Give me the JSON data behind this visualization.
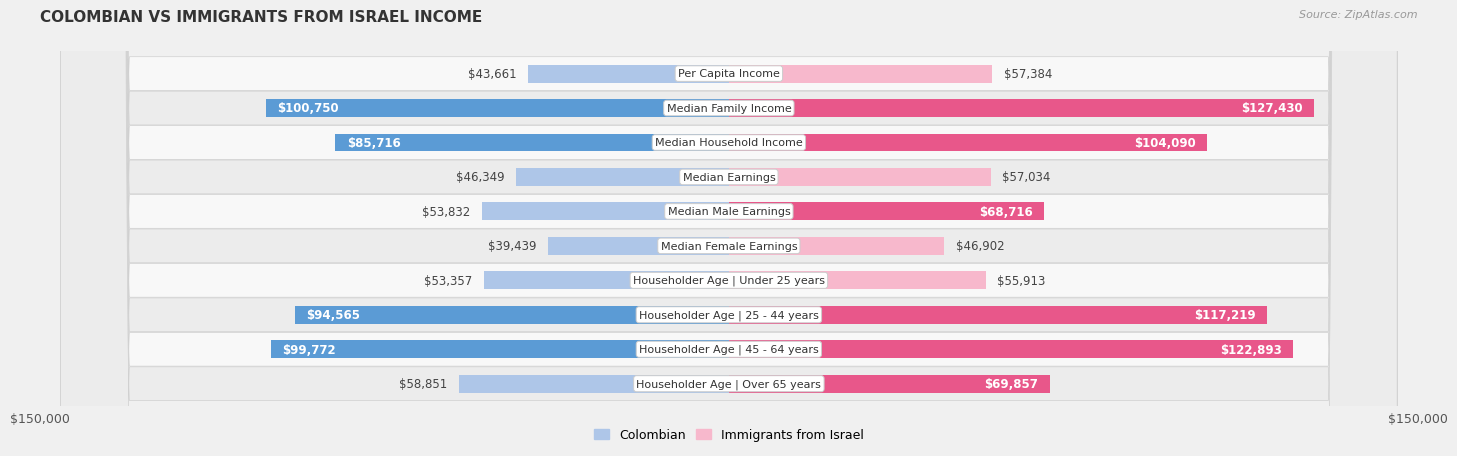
{
  "title": "COLOMBIAN VS IMMIGRANTS FROM ISRAEL INCOME",
  "source": "Source: ZipAtlas.com",
  "categories": [
    "Per Capita Income",
    "Median Family Income",
    "Median Household Income",
    "Median Earnings",
    "Median Male Earnings",
    "Median Female Earnings",
    "Householder Age | Under 25 years",
    "Householder Age | 25 - 44 years",
    "Householder Age | 45 - 64 years",
    "Householder Age | Over 65 years"
  ],
  "colombian_values": [
    43661,
    100750,
    85716,
    46349,
    53832,
    39439,
    53357,
    94565,
    99772,
    58851
  ],
  "israel_values": [
    57384,
    127430,
    104090,
    57034,
    68716,
    46902,
    55913,
    117219,
    122893,
    69857
  ],
  "colombian_labels": [
    "$43,661",
    "$100,750",
    "$85,716",
    "$46,349",
    "$53,832",
    "$39,439",
    "$53,357",
    "$94,565",
    "$99,772",
    "$58,851"
  ],
  "israel_labels": [
    "$57,384",
    "$127,430",
    "$104,090",
    "$57,034",
    "$68,716",
    "$46,902",
    "$55,913",
    "$117,219",
    "$122,893",
    "$69,857"
  ],
  "max_val": 150000,
  "color_colombian_light": "#aec6e8",
  "color_colombian_dark": "#5b9bd5",
  "color_israel_light": "#f7b8cc",
  "color_israel_dark": "#e8578a",
  "bg_color": "#f0f0f0",
  "row_bg": "#f5f5f5",
  "label_fontsize": 8.5,
  "cat_fontsize": 8.0,
  "inside_threshold_col": 60000,
  "inside_threshold_isr": 60000,
  "legend_label_colombian": "Colombian",
  "legend_label_israel": "Immigrants from Israel",
  "x_tick_label": "$150,000"
}
